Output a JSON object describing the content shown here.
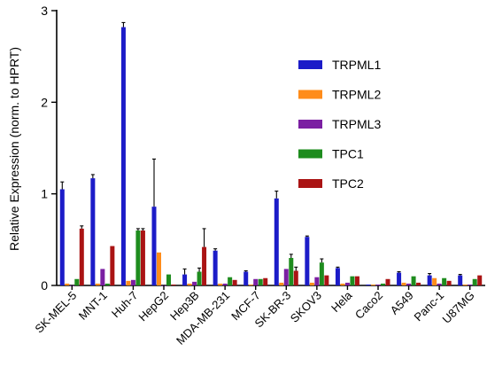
{
  "chart_data": {
    "type": "bar",
    "ylabel": "Relative Expression (norm. to HPRT)",
    "xlabel": "",
    "ylim": [
      0,
      3
    ],
    "yticks": [
      "0",
      "1",
      "2",
      "3"
    ],
    "legend_position": "top-right",
    "categories": [
      "SK-MEL-5",
      "MNT-1",
      "Huh-7",
      "HepG2",
      "Hep3B",
      "MDA-MB-231",
      "MCF-7",
      "SK-BR-3",
      "SKOV3",
      "Hela",
      "Caco2",
      "A549",
      "Panc-1",
      "U87MG"
    ],
    "series": [
      {
        "name": "TRPML1",
        "color": "#1c1cc8",
        "values": [
          1.05,
          1.17,
          2.82,
          0.86,
          0.12,
          0.38,
          0.15,
          0.95,
          0.53,
          0.19,
          0.01,
          0.14,
          0.11,
          0.11
        ],
        "errors": [
          0.08,
          0.04,
          0.05,
          0.52,
          0.06,
          0.02,
          0.01,
          0.08,
          0.01,
          0.01,
          0.0,
          0.01,
          0.02,
          0.01
        ]
      },
      {
        "name": "TRPML2",
        "color": "#ff8c1a",
        "values": [
          0.02,
          0.02,
          0.05,
          0.36,
          0.02,
          0.02,
          0.01,
          0.03,
          0.03,
          0.02,
          0.01,
          0.03,
          0.08,
          0.01
        ],
        "errors": [
          0.0,
          0.0,
          0.0,
          0.0,
          0.0,
          0.0,
          0.0,
          0.0,
          0.0,
          0.0,
          0.0,
          0.0,
          0.0,
          0.0
        ]
      },
      {
        "name": "TRPML3",
        "color": "#7b1fa2",
        "values": [
          0.0,
          0.18,
          0.06,
          0.0,
          0.04,
          0.02,
          0.07,
          0.18,
          0.09,
          0.03,
          0.01,
          0.02,
          0.02,
          0.01
        ],
        "errors": [
          0.0,
          0.0,
          0.0,
          0.0,
          0.0,
          0.0,
          0.0,
          0.0,
          0.0,
          0.0,
          0.0,
          0.0,
          0.0,
          0.0
        ]
      },
      {
        "name": "TPC1",
        "color": "#1e8c1e",
        "values": [
          0.07,
          0.02,
          0.6,
          0.12,
          0.15,
          0.09,
          0.07,
          0.3,
          0.25,
          0.1,
          0.02,
          0.1,
          0.08,
          0.07
        ],
        "errors": [
          0.0,
          0.0,
          0.02,
          0.0,
          0.04,
          0.0,
          0.0,
          0.04,
          0.04,
          0.0,
          0.0,
          0.0,
          0.0,
          0.0
        ]
      },
      {
        "name": "TPC2",
        "color": "#aa1414",
        "values": [
          0.62,
          0.43,
          0.6,
          0.01,
          0.42,
          0.06,
          0.08,
          0.16,
          0.11,
          0.1,
          0.07,
          0.03,
          0.05,
          0.11
        ],
        "errors": [
          0.03,
          0.0,
          0.02,
          0.0,
          0.2,
          0.0,
          0.0,
          0.04,
          0.0,
          0.0,
          0.0,
          0.0,
          0.0,
          0.0
        ]
      }
    ]
  }
}
